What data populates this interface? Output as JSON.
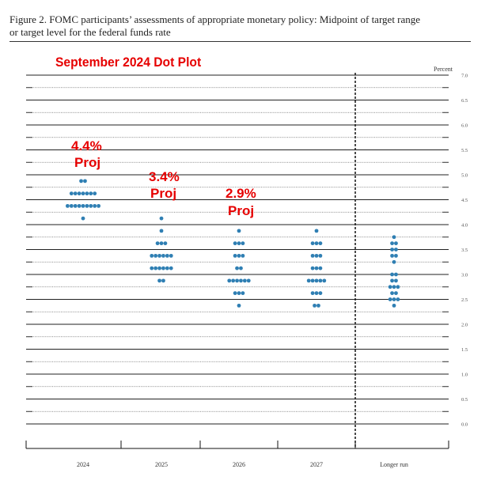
{
  "caption": {
    "line1": "Figure 2.  FOMC participants’ assessments of appropriate monetary policy:  Midpoint of target range",
    "line2": "or target level for the federal funds rate"
  },
  "chart_data": {
    "type": "scatter",
    "title": "September 2024 Dot Plot",
    "ylabel": "Percent",
    "ylim": [
      0,
      7
    ],
    "yticks": [
      "0.0",
      "0.5",
      "1.0",
      "1.5",
      "2.0",
      "2.5",
      "3.0",
      "3.5",
      "4.0",
      "4.5",
      "5.0",
      "5.5",
      "6.0",
      "6.5",
      "7.0"
    ],
    "categories": [
      "2024",
      "2025",
      "2026",
      "2027",
      "Longer run"
    ],
    "dot_color": "#2f7fb3",
    "annotation_color": "#e60000",
    "dots": [
      {
        "category": "2024",
        "points": [
          {
            "y": 4.875,
            "count": 2
          },
          {
            "y": 4.625,
            "count": 7
          },
          {
            "y": 4.375,
            "count": 9
          },
          {
            "y": 4.125,
            "count": 1
          }
        ]
      },
      {
        "category": "2025",
        "points": [
          {
            "y": 4.125,
            "count": 1
          },
          {
            "y": 3.875,
            "count": 1
          },
          {
            "y": 3.625,
            "count": 3
          },
          {
            "y": 3.375,
            "count": 6
          },
          {
            "y": 3.125,
            "count": 6
          },
          {
            "y": 2.875,
            "count": 2
          }
        ]
      },
      {
        "category": "2026",
        "points": [
          {
            "y": 3.875,
            "count": 1
          },
          {
            "y": 3.625,
            "count": 3
          },
          {
            "y": 3.375,
            "count": 3
          },
          {
            "y": 3.125,
            "count": 2
          },
          {
            "y": 2.875,
            "count": 6
          },
          {
            "y": 2.625,
            "count": 3
          },
          {
            "y": 2.375,
            "count": 1
          }
        ]
      },
      {
        "category": "2027",
        "points": [
          {
            "y": 3.875,
            "count": 1
          },
          {
            "y": 3.625,
            "count": 3
          },
          {
            "y": 3.375,
            "count": 3
          },
          {
            "y": 3.125,
            "count": 3
          },
          {
            "y": 2.875,
            "count": 5
          },
          {
            "y": 2.625,
            "count": 3
          },
          {
            "y": 2.375,
            "count": 2
          }
        ]
      },
      {
        "category": "Longer run",
        "points": [
          {
            "y": 3.75,
            "count": 1
          },
          {
            "y": 3.625,
            "count": 2
          },
          {
            "y": 3.5,
            "count": 2
          },
          {
            "y": 3.375,
            "count": 2
          },
          {
            "y": 3.25,
            "count": 1
          },
          {
            "y": 3.0,
            "count": 2
          },
          {
            "y": 2.875,
            "count": 2
          },
          {
            "y": 2.75,
            "count": 3
          },
          {
            "y": 2.625,
            "count": 2
          },
          {
            "y": 2.5,
            "count": 3
          },
          {
            "y": 2.375,
            "count": 1
          }
        ]
      }
    ],
    "annotations": [
      {
        "category": "2024",
        "lines": [
          "4.4%",
          "Proj"
        ]
      },
      {
        "category": "2025",
        "lines": [
          "3.4%",
          "Proj"
        ]
      },
      {
        "category": "2026",
        "lines": [
          "2.9%",
          "Proj"
        ]
      }
    ]
  }
}
